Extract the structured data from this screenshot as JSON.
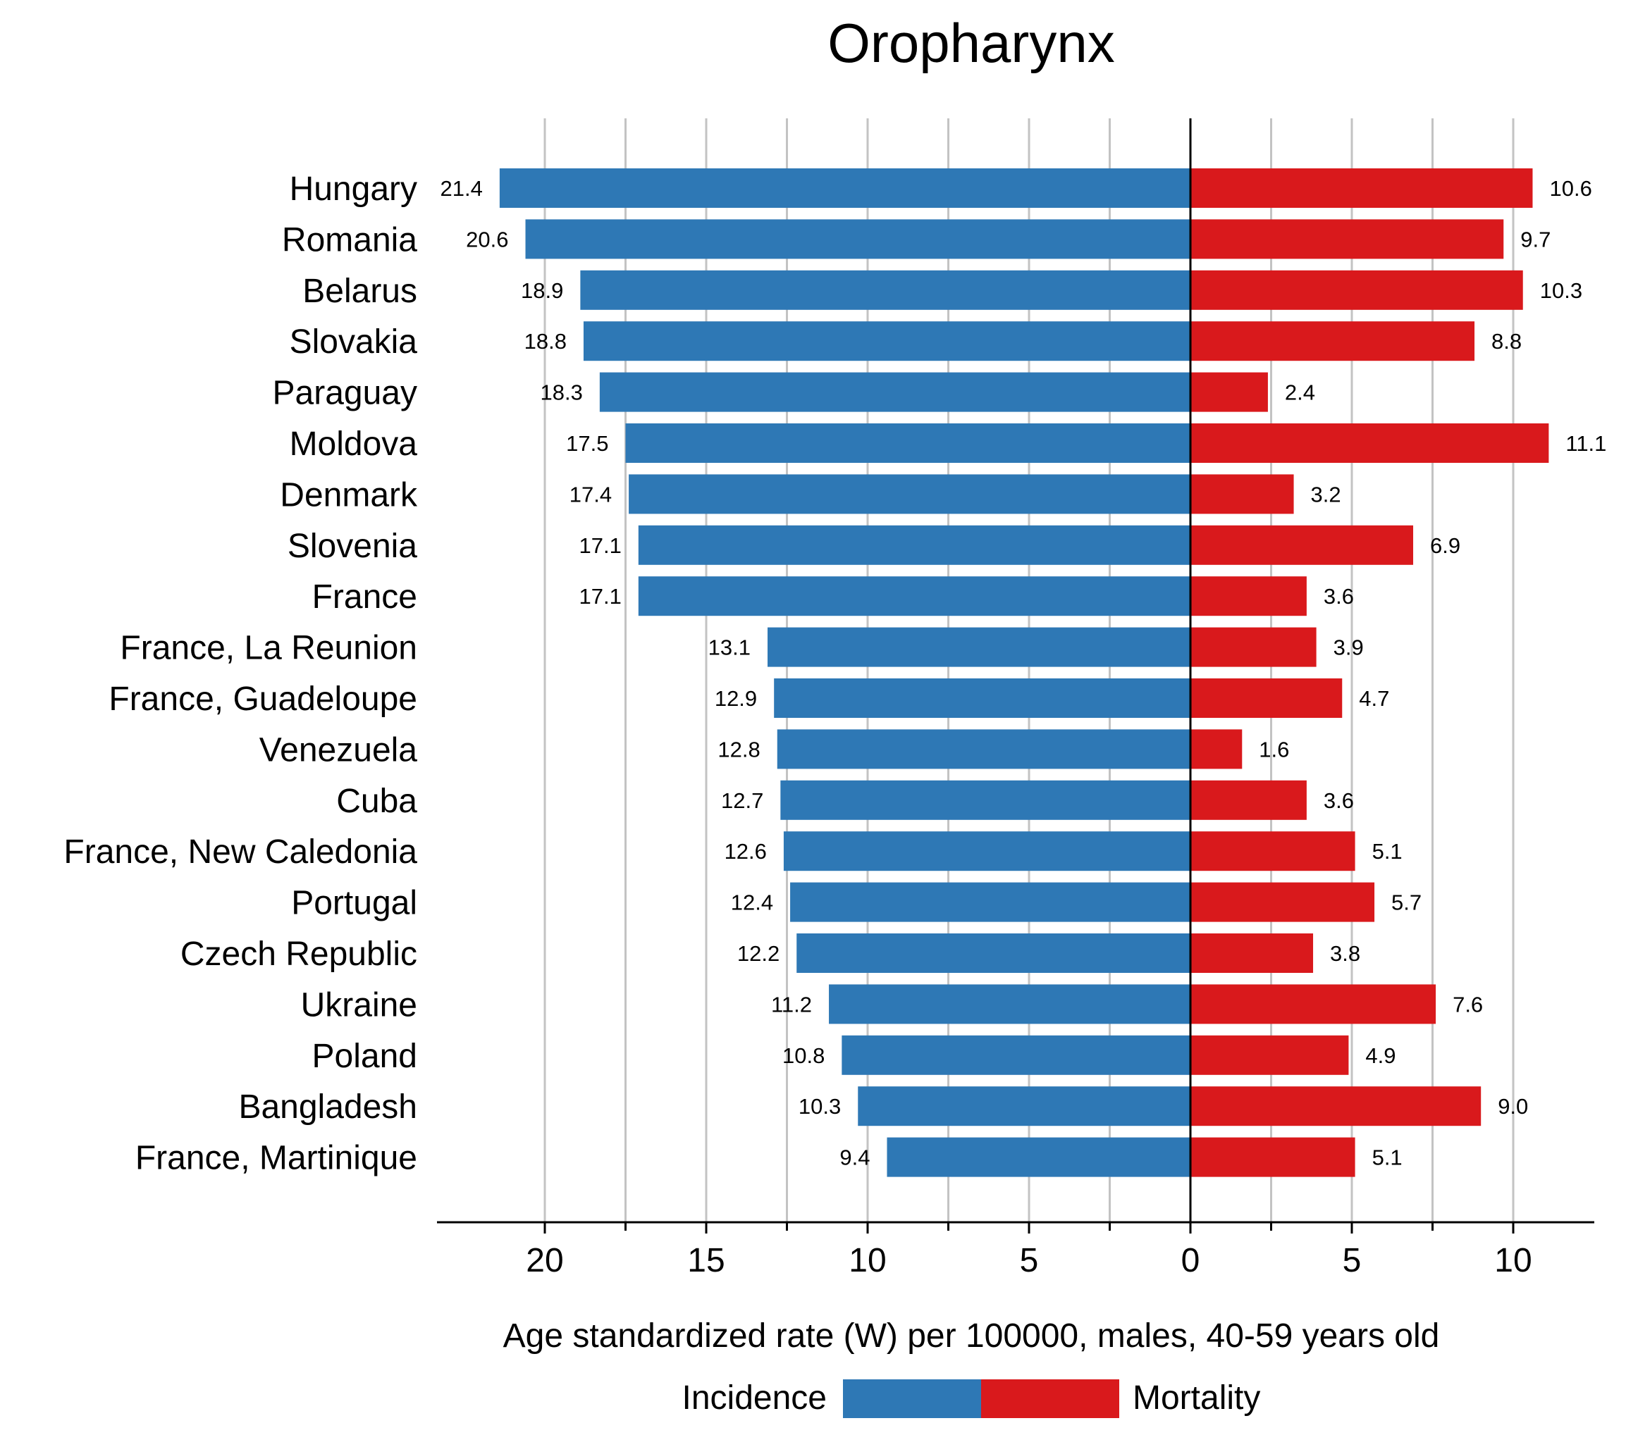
{
  "chart_data": {
    "type": "bar",
    "orientation": "horizontal-diverging",
    "title": "Oropharynx",
    "xlabel": "Age standardized rate (W) per 100000, males, 40-59 years old",
    "categories": [
      "Hungary",
      "Romania",
      "Belarus",
      "Slovakia",
      "Paraguay",
      "Moldova",
      "Denmark",
      "Slovenia",
      "France",
      "France, La Reunion",
      "France, Guadeloupe",
      "Venezuela",
      "Cuba",
      "France, New Caledonia",
      "Portugal",
      "Czech Republic",
      "Ukraine",
      "Poland",
      "Bangladesh",
      "France, Martinique"
    ],
    "series": [
      {
        "name": "Incidence",
        "side": "left",
        "color": "#2e78b5",
        "values": [
          21.4,
          20.6,
          18.9,
          18.8,
          18.3,
          17.5,
          17.4,
          17.1,
          17.1,
          13.1,
          12.9,
          12.8,
          12.7,
          12.6,
          12.4,
          12.2,
          11.2,
          10.8,
          10.3,
          9.4
        ],
        "labels": [
          "21.4",
          "20.6",
          "18.9",
          "18.8",
          "18.3",
          "17.5",
          "17.4",
          "17.1",
          "17.1",
          "13.1",
          "12.9",
          "12.8",
          "12.7",
          "12.6",
          "12.4",
          "12.2",
          "11.2",
          "10.8",
          "10.3",
          "9.4"
        ]
      },
      {
        "name": "Mortality",
        "side": "right",
        "color": "#d9191c",
        "values": [
          10.6,
          9.7,
          10.3,
          8.8,
          2.4,
          11.1,
          3.2,
          6.9,
          3.6,
          3.9,
          4.7,
          1.6,
          3.6,
          5.1,
          5.7,
          3.8,
          7.6,
          4.9,
          9.0,
          5.1
        ],
        "labels": [
          "10.6",
          "9.7",
          "10.3",
          "8.8",
          "2.4",
          "11.1",
          "3.2",
          "6.9",
          "3.6",
          "3.9",
          "4.7",
          "1.6",
          "3.6",
          "5.1",
          "5.7",
          "3.8",
          "7.6",
          "4.9",
          "9.0",
          "5.1"
        ]
      }
    ],
    "xlim": [
      -23.5,
      12.5
    ],
    "major_ticks": [
      -20,
      -15,
      -10,
      -5,
      0,
      5,
      10
    ],
    "tick_labels": [
      "20",
      "15",
      "10",
      "5",
      "0",
      "5",
      "10"
    ],
    "grid_values": [
      -20,
      -17.5,
      -15,
      -12.5,
      -10,
      -7.5,
      -5,
      -2.5,
      2.5,
      5,
      7.5,
      10
    ],
    "grid": true,
    "legend_position": "bottom-center"
  }
}
